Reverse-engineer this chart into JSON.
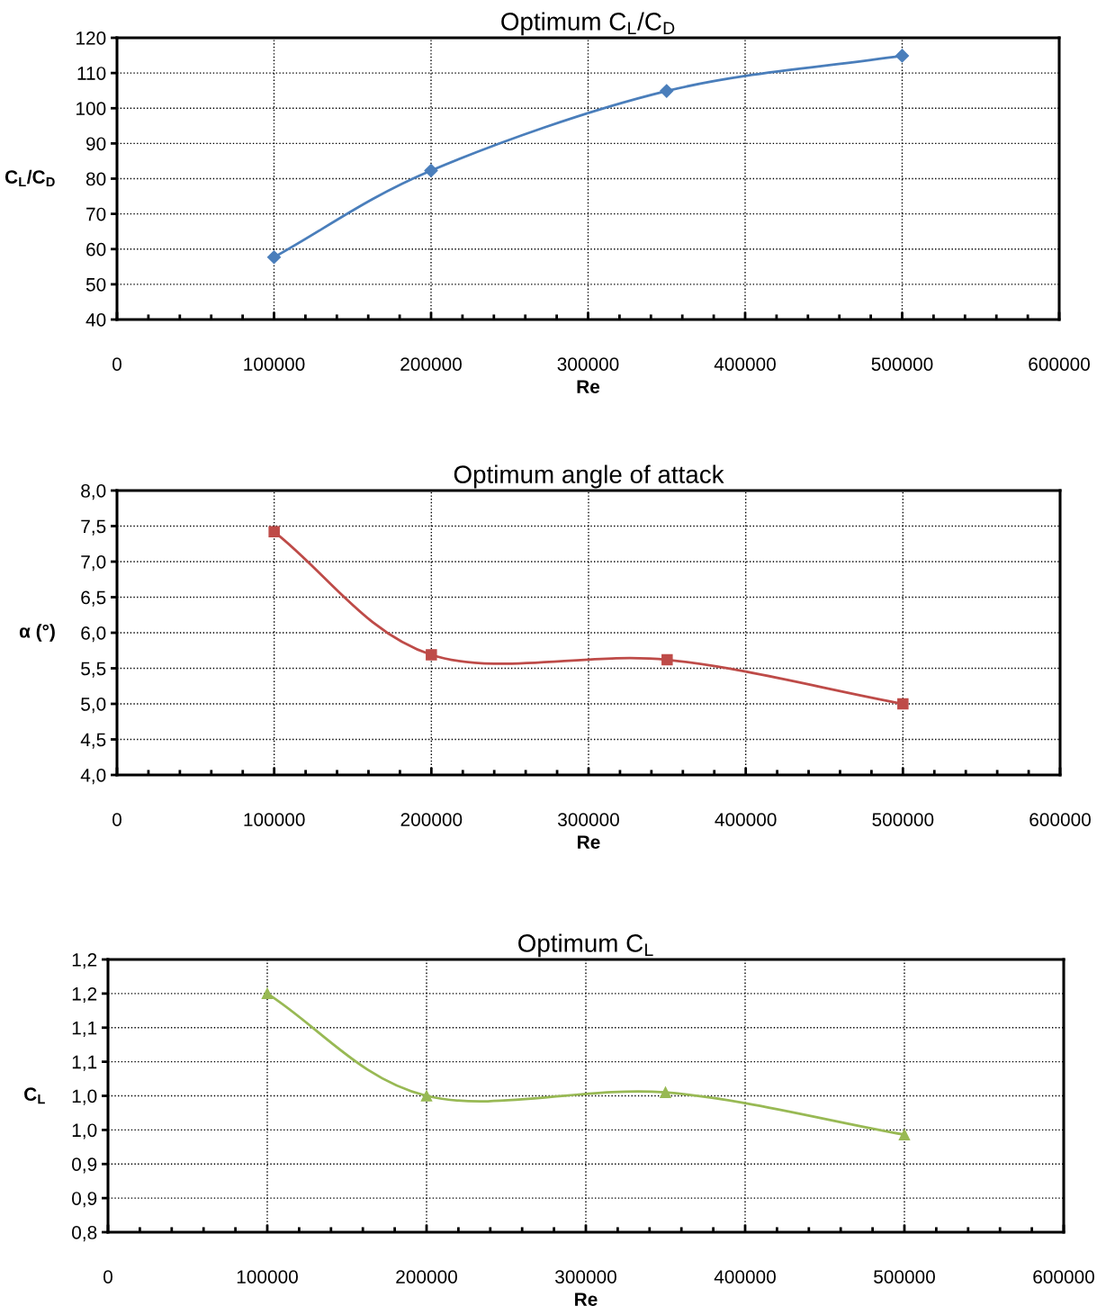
{
  "chart_data": [
    {
      "type": "line",
      "title": "Optimum C$_{L}$/C$_{D}$",
      "xlabel": "Re",
      "ylabel": "C$_{L}$/C$_{D}$",
      "x": [
        100000,
        200000,
        350000,
        500000
      ],
      "series": [
        {
          "color": "#4a7ebb",
          "values": [
            57.7,
            82.3,
            104.9,
            114.9
          ]
        }
      ],
      "marker": "diamond",
      "line_style": "solid",
      "grid": true,
      "xlim": [
        0,
        600000
      ],
      "xticks": [
        0,
        100000,
        200000,
        300000,
        400000,
        500000,
        600000
      ],
      "ylim": [
        40,
        120
      ],
      "yticks": [
        40,
        50,
        60,
        70,
        80,
        90,
        100,
        110,
        120
      ]
    },
    {
      "type": "line",
      "title": "Optimum angle of attack",
      "xlabel": "Re",
      "ylabel": "α (°)",
      "x": [
        100000,
        200000,
        350000,
        500000
      ],
      "series": [
        {
          "color": "#be4b48",
          "values": [
            7.42,
            5.69,
            5.62,
            5.0
          ]
        }
      ],
      "marker": "square",
      "line_style": "solid",
      "grid": true,
      "xlim": [
        0,
        600000
      ],
      "xticks": [
        0,
        100000,
        200000,
        300000,
        400000,
        500000,
        600000
      ],
      "ylim": [
        4.0,
        8.0
      ],
      "yticks": [
        {
          "value": 4.0,
          "label": "4,0"
        },
        {
          "value": 4.5,
          "label": "4,5"
        },
        {
          "value": 5.0,
          "label": "5,0"
        },
        {
          "value": 5.5,
          "label": "5,5"
        },
        {
          "value": 6.0,
          "label": "6,0"
        },
        {
          "value": 6.5,
          "label": "6,5"
        },
        {
          "value": 7.0,
          "label": "7,0"
        },
        {
          "value": 7.5,
          "label": "7,5"
        },
        {
          "value": 8.0,
          "label": "8,0"
        }
      ]
    },
    {
      "type": "line",
      "title": "Optimum C$_{L}$",
      "xlabel": "Re",
      "ylabel": "C$_{L}$",
      "x": [
        100000,
        200000,
        350000,
        500000
      ],
      "series": [
        {
          "color": "#98b954",
          "values": [
            1.15,
            1.0,
            1.005,
            0.943
          ]
        }
      ],
      "marker": "triangle",
      "line_style": "solid",
      "grid": true,
      "xlim": [
        0,
        600000
      ],
      "xticks": [
        0,
        100000,
        200000,
        300000,
        400000,
        500000,
        600000
      ],
      "ylim": [
        0.8,
        1.2
      ],
      "yticks": [
        {
          "value": 0.8,
          "label": "0,8"
        },
        {
          "value": 0.85,
          "label": "0,9"
        },
        {
          "value": 0.9,
          "label": "0,9"
        },
        {
          "value": 0.95,
          "label": "1,0"
        },
        {
          "value": 1.0,
          "label": "1,0"
        },
        {
          "value": 1.05,
          "label": "1,1"
        },
        {
          "value": 1.1,
          "label": "1,1"
        },
        {
          "value": 1.15,
          "label": "1,2"
        },
        {
          "value": 1.2,
          "label": "1,2"
        }
      ]
    }
  ]
}
